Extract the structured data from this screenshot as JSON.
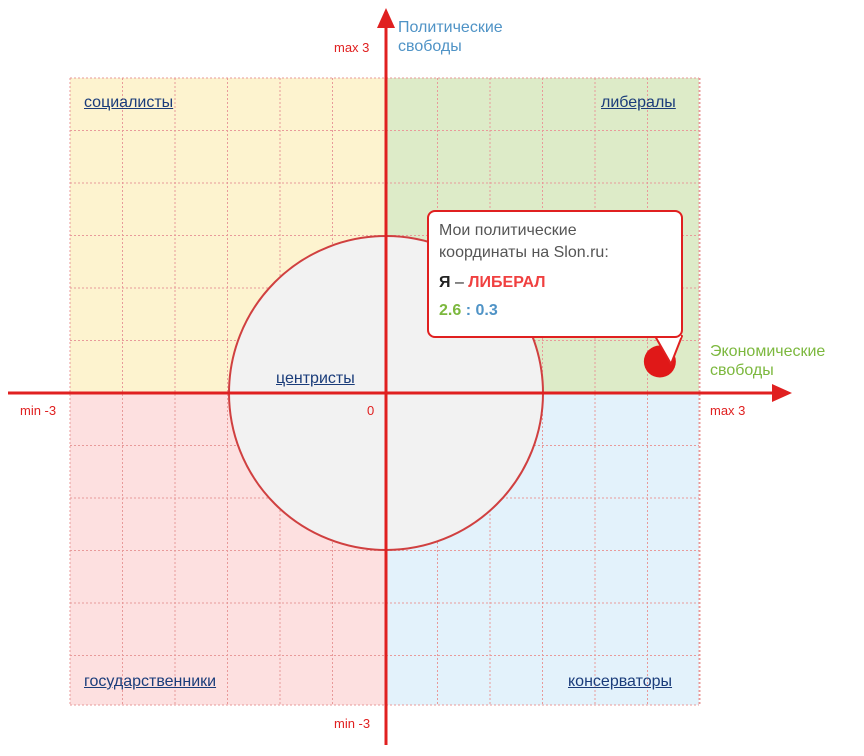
{
  "chart_data": {
    "type": "scatter",
    "xlabel": "Экономические свободы",
    "ylabel": "Политические свободы",
    "xlim": [
      -3,
      3
    ],
    "ylim": [
      -3,
      3
    ],
    "x_ticks": {
      "min": "min -3",
      "max": "max 3",
      "zero": "0"
    },
    "y_ticks": {
      "min": "min -3",
      "max": "max 3"
    },
    "grid": true,
    "points": [
      {
        "x": 2.6,
        "y": 0.3
      }
    ]
  },
  "quadrants": {
    "top_left": "социалисты",
    "top_right": "либералы",
    "bottom_left": "государственники",
    "bottom_right": "консерваторы",
    "center": "центристы"
  },
  "bubble": {
    "caption_line1": "Мои политические",
    "caption_line2": "координаты на Slon.ru:",
    "me": "Я",
    "dash": " – ",
    "verdict": "ЛИБЕРАЛ",
    "econ_value": "2.6",
    "separator": " : ",
    "pol_value": "0.3"
  },
  "colors": {
    "axis": "#e02020",
    "top_left_fill": "#fdf3cf",
    "top_right_fill": "#ddebc8",
    "bottom_left_fill": "#fde0e0",
    "bottom_right_fill": "#e3f2fb",
    "center_fill": "#f2f2f2",
    "econ_color": "#7cb83e",
    "pol_color": "#4f93c6",
    "link_color": "#1a3c7a"
  }
}
